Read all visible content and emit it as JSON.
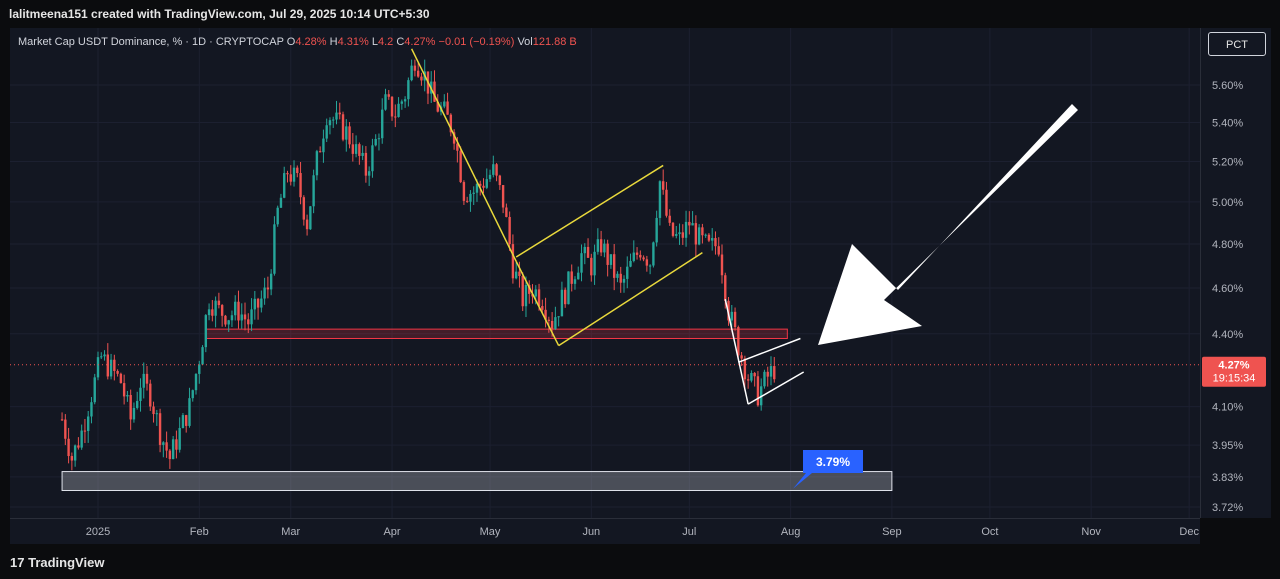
{
  "header": {
    "attribution": "lalitmeena151 created with TradingView.com, Jul 29, 2025 10:14 UTC+5:30"
  },
  "legend": {
    "symbol": "Market Cap USDT Dominance, % · 1D · CRYPTOCAP",
    "o_label": "O",
    "o_value": "4.28%",
    "h_label": "H",
    "h_value": "4.31%",
    "l_label": "L",
    "l_value": "4.2",
    "c_label": "C",
    "c_value": "4.27%",
    "change": "−0.01 (−0.19%)",
    "vol_label": "Vol",
    "vol_value": "121.88 B"
  },
  "pct_button": "PCT",
  "footer": {
    "brand": "TradingView"
  },
  "colors": {
    "up": "#26a69a",
    "down": "#ef5350",
    "channel": "#e9d93c",
    "zone": "#f23645",
    "annotation": "#2962ff"
  },
  "chart_data": {
    "type": "candlestick",
    "y_scale": "log",
    "y_ticks": [
      {
        "value": 5.6,
        "label": "5.60%"
      },
      {
        "value": 5.4,
        "label": "5.40%"
      },
      {
        "value": 5.2,
        "label": "5.20%"
      },
      {
        "value": 5.0,
        "label": "5.00%"
      },
      {
        "value": 4.8,
        "label": "4.80%"
      },
      {
        "value": 4.6,
        "label": "4.60%"
      },
      {
        "value": 4.4,
        "label": "4.40%"
      },
      {
        "value": 4.1,
        "label": "4.10%"
      },
      {
        "value": 3.95,
        "label": "3.95%"
      },
      {
        "value": 3.83,
        "label": "3.83%"
      },
      {
        "value": 3.72,
        "label": "3.72%"
      }
    ],
    "x_ticks": [
      "2025",
      "Feb",
      "Mar",
      "Apr",
      "May",
      "Jun",
      "Jul",
      "Aug",
      "Sep",
      "Oct",
      "Nov",
      "Dec"
    ],
    "current": {
      "price_label": "4.27%",
      "countdown": "19:15:34",
      "value": 4.27
    },
    "annotation": {
      "label": "3.79%",
      "value": 3.79
    },
    "series": [
      {
        "date": "2024-12-21",
        "v": 4.05
      },
      {
        "date": "2024-12-24",
        "v": 3.9
      },
      {
        "date": "2024-12-27",
        "v": 4.0
      },
      {
        "date": "2024-12-30",
        "v": 4.15
      },
      {
        "date": "2025-01-02",
        "v": 4.3
      },
      {
        "date": "2025-01-05",
        "v": 4.25
      },
      {
        "date": "2025-01-08",
        "v": 4.2
      },
      {
        "date": "2025-01-11",
        "v": 4.05
      },
      {
        "date": "2025-01-14",
        "v": 4.2
      },
      {
        "date": "2025-01-17",
        "v": 4.15
      },
      {
        "date": "2025-01-20",
        "v": 4.0
      },
      {
        "date": "2025-01-23",
        "v": 3.9
      },
      {
        "date": "2025-01-26",
        "v": 4.0
      },
      {
        "date": "2025-01-29",
        "v": 4.1
      },
      {
        "date": "2025-02-01",
        "v": 4.3
      },
      {
        "date": "2025-02-04",
        "v": 4.55
      },
      {
        "date": "2025-02-07",
        "v": 4.5
      },
      {
        "date": "2025-02-10",
        "v": 4.48
      },
      {
        "date": "2025-02-13",
        "v": 4.5
      },
      {
        "date": "2025-02-16",
        "v": 4.45
      },
      {
        "date": "2025-02-19",
        "v": 4.52
      },
      {
        "date": "2025-02-22",
        "v": 4.6
      },
      {
        "date": "2025-02-25",
        "v": 4.95
      },
      {
        "date": "2025-02-28",
        "v": 5.15
      },
      {
        "date": "2025-03-03",
        "v": 5.1
      },
      {
        "date": "2025-03-06",
        "v": 4.9
      },
      {
        "date": "2025-03-09",
        "v": 5.2
      },
      {
        "date": "2025-03-12",
        "v": 5.45
      },
      {
        "date": "2025-03-15",
        "v": 5.4
      },
      {
        "date": "2025-03-18",
        "v": 5.35
      },
      {
        "date": "2025-03-21",
        "v": 5.25
      },
      {
        "date": "2025-03-24",
        "v": 5.15
      },
      {
        "date": "2025-03-27",
        "v": 5.3
      },
      {
        "date": "2025-03-30",
        "v": 5.5
      },
      {
        "date": "2025-04-02",
        "v": 5.45
      },
      {
        "date": "2025-04-05",
        "v": 5.55
      },
      {
        "date": "2025-04-08",
        "v": 5.75
      },
      {
        "date": "2025-04-11",
        "v": 5.65
      },
      {
        "date": "2025-04-14",
        "v": 5.5
      },
      {
        "date": "2025-04-17",
        "v": 5.45
      },
      {
        "date": "2025-04-20",
        "v": 5.35
      },
      {
        "date": "2025-04-23",
        "v": 5.05
      },
      {
        "date": "2025-04-26",
        "v": 5.05
      },
      {
        "date": "2025-04-29",
        "v": 5.1
      },
      {
        "date": "2025-05-02",
        "v": 5.15
      },
      {
        "date": "2025-05-05",
        "v": 5.0
      },
      {
        "date": "2025-05-08",
        "v": 4.7
      },
      {
        "date": "2025-05-11",
        "v": 4.55
      },
      {
        "date": "2025-05-14",
        "v": 4.6
      },
      {
        "date": "2025-05-17",
        "v": 4.55
      },
      {
        "date": "2025-05-20",
        "v": 4.45
      },
      {
        "date": "2025-05-23",
        "v": 4.55
      },
      {
        "date": "2025-05-26",
        "v": 4.65
      },
      {
        "date": "2025-05-29",
        "v": 4.75
      },
      {
        "date": "2025-06-01",
        "v": 4.7
      },
      {
        "date": "2025-06-04",
        "v": 4.8
      },
      {
        "date": "2025-06-07",
        "v": 4.7
      },
      {
        "date": "2025-06-10",
        "v": 4.6
      },
      {
        "date": "2025-06-13",
        "v": 4.7
      },
      {
        "date": "2025-06-16",
        "v": 4.78
      },
      {
        "date": "2025-06-19",
        "v": 4.72
      },
      {
        "date": "2025-06-22",
        "v": 5.1
      },
      {
        "date": "2025-06-25",
        "v": 4.85
      },
      {
        "date": "2025-06-28",
        "v": 4.82
      },
      {
        "date": "2025-07-01",
        "v": 4.9
      },
      {
        "date": "2025-07-04",
        "v": 4.82
      },
      {
        "date": "2025-07-07",
        "v": 4.78
      },
      {
        "date": "2025-07-10",
        "v": 4.8
      },
      {
        "date": "2025-07-13",
        "v": 4.5
      },
      {
        "date": "2025-07-16",
        "v": 4.35
      },
      {
        "date": "2025-07-19",
        "v": 4.22
      },
      {
        "date": "2025-07-22",
        "v": 4.15
      },
      {
        "date": "2025-07-25",
        "v": 4.22
      },
      {
        "date": "2025-07-28",
        "v": 4.27
      }
    ],
    "drawings": {
      "support_zone": {
        "from": "2025-02-03",
        "to": "2025-07-31",
        "low": 4.38,
        "high": 4.42
      },
      "bottom_zone": {
        "from": "2024-12-21",
        "to": "2025-09-01",
        "low": 3.78,
        "high": 3.85
      },
      "yellow_lines": [
        [
          {
            "date": "2025-04-07",
            "v": 5.8
          },
          {
            "date": "2025-05-09",
            "v": 4.72
          }
        ],
        [
          {
            "date": "2025-05-09",
            "v": 4.72
          },
          {
            "date": "2025-05-22",
            "v": 4.35
          }
        ],
        [
          {
            "date": "2025-05-22",
            "v": 4.35
          },
          {
            "date": "2025-07-05",
            "v": 4.76
          }
        ],
        [
          {
            "date": "2025-05-09",
            "v": 4.74
          },
          {
            "date": "2025-06-23",
            "v": 5.18
          }
        ]
      ],
      "white_lines": [
        [
          {
            "date": "2025-07-12",
            "v": 4.55
          },
          {
            "date": "2025-07-19",
            "v": 4.11
          }
        ],
        [
          {
            "date": "2025-07-19",
            "v": 4.11
          },
          {
            "date": "2025-08-05",
            "v": 4.24
          }
        ],
        [
          {
            "date": "2025-07-16",
            "v": 4.28
          },
          {
            "date": "2025-08-04",
            "v": 4.38
          }
        ]
      ]
    }
  }
}
